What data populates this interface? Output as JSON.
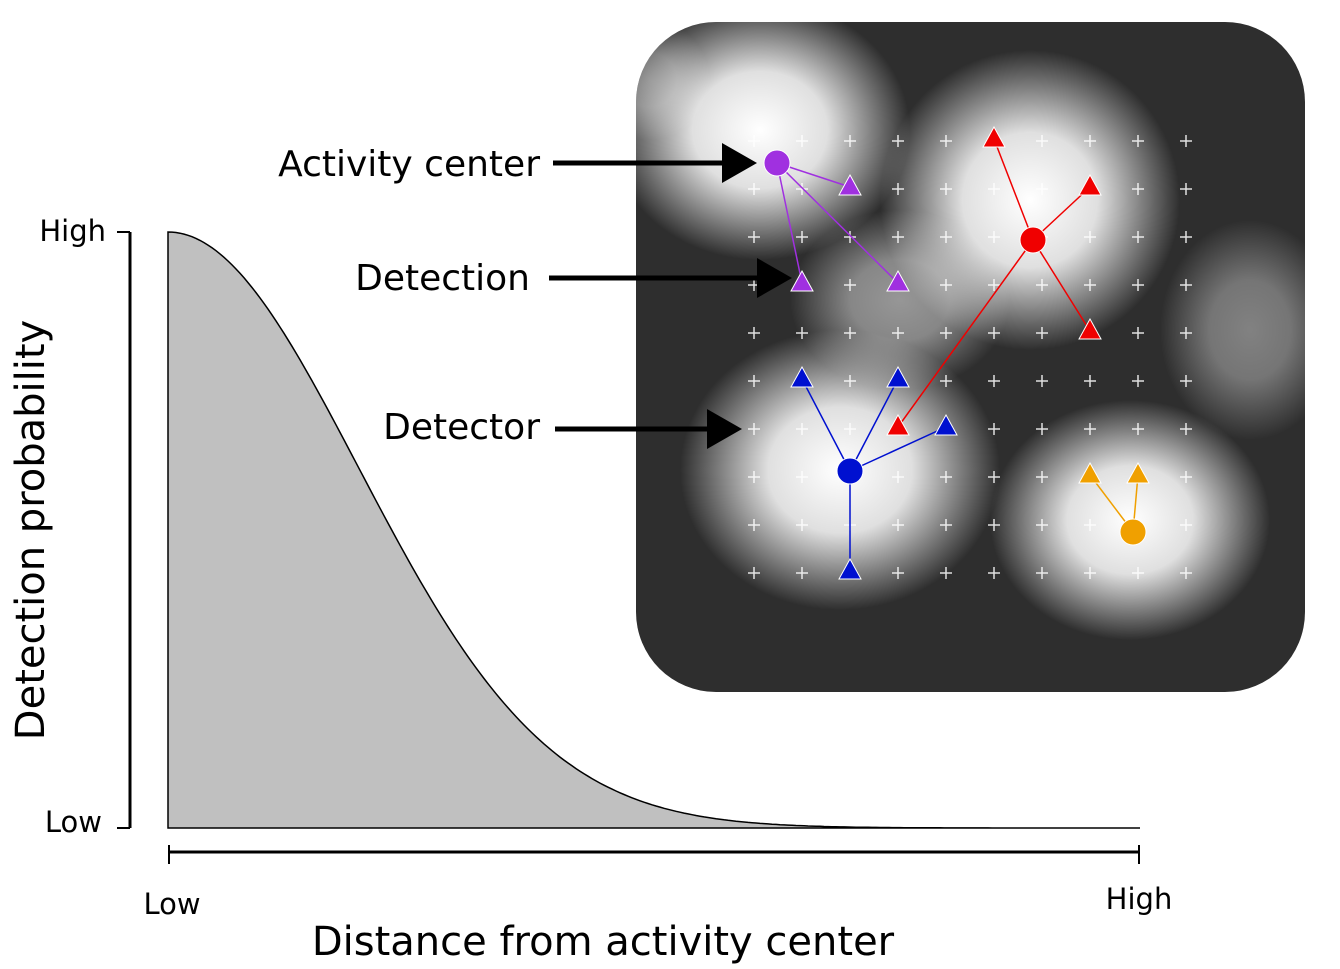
{
  "y_axis": {
    "label": "Detection probability",
    "high": "High",
    "low": "Low"
  },
  "x_axis": {
    "label": "Distance from activity center",
    "low": "Low",
    "high": "High"
  },
  "annotations": [
    "Activity center",
    "Detection",
    "Detector"
  ]
}
